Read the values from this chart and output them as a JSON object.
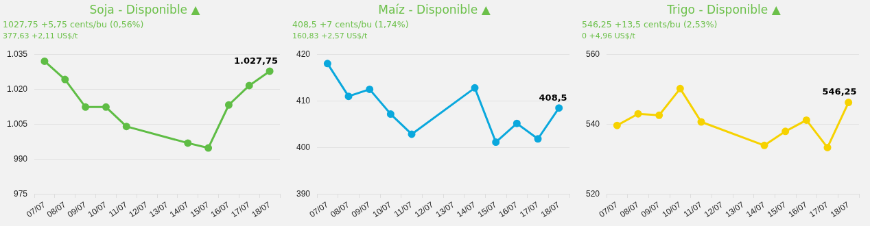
{
  "chart_data": [
    {
      "type": "line",
      "title": "Soja - Disponible ▲",
      "subtitle": "1027,75 +5,75 cents/bu (0,56%)",
      "annotations": [
        "377,63 +2,11 US$/t",
        {
          "text": "1.027,75",
          "x": "18/07",
          "y": 1027.75
        }
      ],
      "categories": [
        "07/07",
        "08/07",
        "09/07",
        "10/07",
        "11/07",
        "12/07",
        "13/07",
        "14/07",
        "15/07",
        "16/07",
        "17/07",
        "18/07"
      ],
      "series": [
        {
          "color": "#5fbd45",
          "values": [
            1032,
            1024.2,
            1012.4,
            1012.4,
            1004.1,
            null,
            null,
            997,
            994.9,
            1013.3,
            1021.6,
            1027.75
          ]
        }
      ],
      "ylim": [
        975,
        1035
      ],
      "yticks": [
        975,
        990,
        {
          "value": 1005,
          "label": "1.005"
        },
        {
          "value": 1020,
          "label": "1.020"
        },
        {
          "value": 1035,
          "label": "1.035"
        }
      ],
      "grid": "y",
      "legend": false,
      "marker": "circle",
      "line_style": "solid"
    },
    {
      "type": "line",
      "title": "Maíz - Disponible ▲",
      "subtitle": "408,5 +7 cents/bu (1,74%)",
      "annotations": [
        "160,83 +2,57 US$/t",
        {
          "text": "408,5",
          "x": "18/07",
          "y": 408.5
        }
      ],
      "categories": [
        "07/07",
        "08/07",
        "09/07",
        "10/07",
        "11/07",
        "12/07",
        "13/07",
        "14/07",
        "15/07",
        "16/07",
        "17/07",
        "18/07"
      ],
      "series": [
        {
          "color": "#0aa8dd",
          "values": [
            418,
            411,
            412.5,
            407.2,
            402.9,
            null,
            null,
            412.8,
            401.2,
            405.2,
            401.9,
            408.5
          ]
        }
      ],
      "ylim": [
        390,
        420
      ],
      "yticks": [
        390,
        400,
        410,
        420
      ],
      "grid": "y",
      "legend": false,
      "marker": "circle",
      "line_style": "solid"
    },
    {
      "type": "line",
      "title": "Trigo - Disponible ▲",
      "subtitle": "546,25 +13,5 cents/bu (2,53%)",
      "annotations": [
        "0 +4,96 US$/t",
        {
          "text": "546,25",
          "x": "18/07",
          "y": 546.25
        }
      ],
      "categories": [
        "07/07",
        "08/07",
        "09/07",
        "10/07",
        "11/07",
        "12/07",
        "13/07",
        "14/07",
        "15/07",
        "16/07",
        "17/07",
        "18/07"
      ],
      "series": [
        {
          "color": "#f6d200",
          "values": [
            539.7,
            543,
            542.6,
            550.2,
            540.7,
            null,
            null,
            534,
            538,
            541.2,
            533.4,
            546.25
          ]
        }
      ],
      "ylim": [
        520,
        560
      ],
      "yticks": [
        520,
        540,
        560
      ],
      "grid": "y",
      "legend": false,
      "marker": "circle",
      "line_style": "solid"
    }
  ]
}
